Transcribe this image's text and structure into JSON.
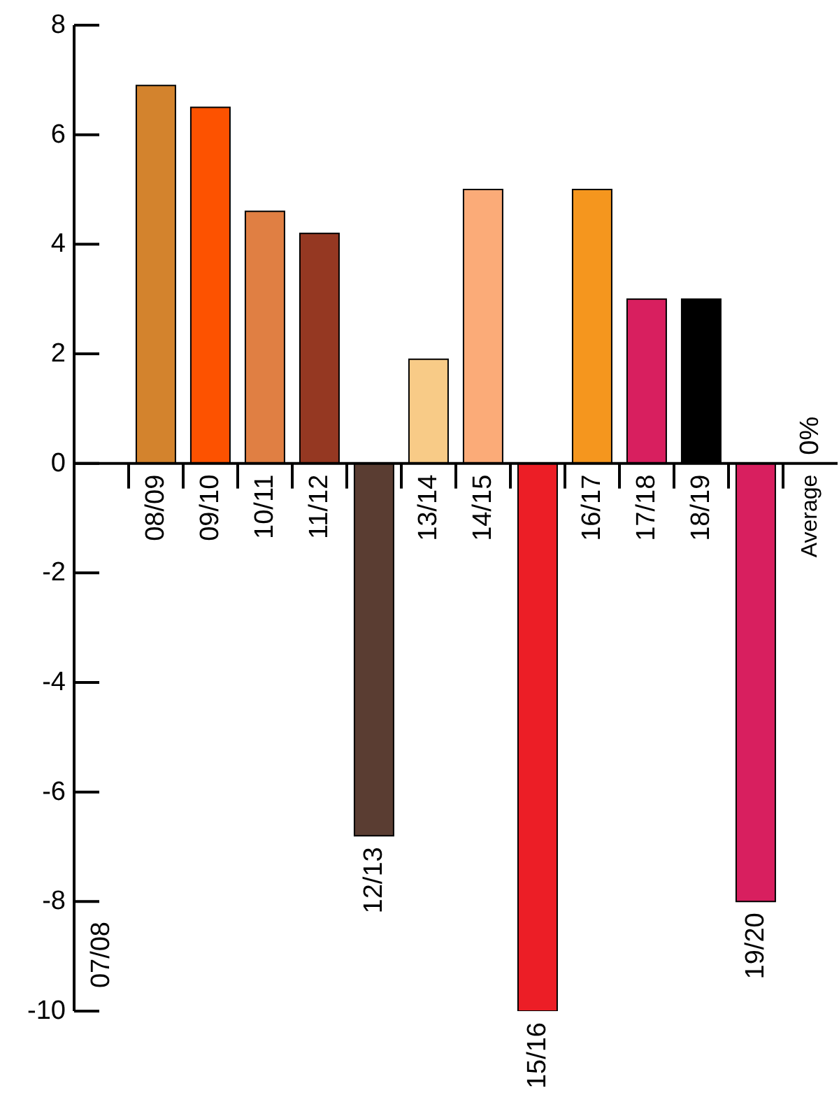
{
  "chart_data": {
    "type": "bar",
    "categories": [
      "07/08",
      "08/09",
      "09/10",
      "10/11",
      "11/12",
      "12/13",
      "13/14",
      "14/15",
      "15/16",
      "16/17",
      "17/18",
      "18/19",
      "19/20",
      "Average"
    ],
    "values": [
      null,
      6.9,
      6.5,
      4.6,
      4.2,
      -6.8,
      1.9,
      5.0,
      -10,
      5.0,
      3.0,
      3.0,
      -8.0,
      0
    ],
    "colors": [
      "#d3832d",
      "#d3832d",
      "#fd5200",
      "#e07f43",
      "#953822",
      "#5a3d32",
      "#f8cb87",
      "#fbab78",
      "#ec1e26",
      "#f5961e",
      "#d81f5f",
      "#000000",
      "#d81f5f",
      "#d81f5f"
    ],
    "value_labels": [
      null,
      null,
      null,
      null,
      null,
      null,
      null,
      null,
      null,
      null,
      null,
      null,
      null,
      "0%"
    ],
    "ylim": [
      -10,
      8
    ],
    "yticks": [
      -10,
      -8,
      -6,
      -4,
      -2,
      0,
      2,
      4,
      6,
      8
    ]
  }
}
